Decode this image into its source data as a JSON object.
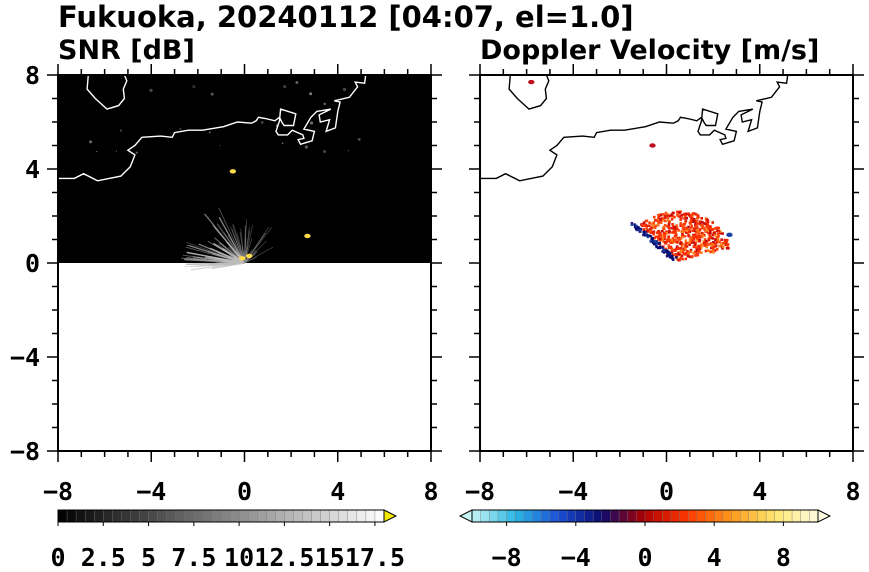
{
  "title": "Fukuoka, 20240112 [04:07, el=1.0]",
  "chart_data": [
    {
      "type": "heatmap",
      "panel": "SNR",
      "title": "SNR [dB]",
      "xlim": [
        -8,
        8
      ],
      "ylim": [
        -8,
        8
      ],
      "x_ticks": [
        "−8",
        "−4",
        "0",
        "4",
        "8"
      ],
      "y_ticks": [
        "8",
        "4",
        "0",
        "−4",
        "−8"
      ],
      "data_extent_y": [
        0,
        8
      ],
      "background_color": "#000000",
      "colorbar": {
        "min": 0,
        "max": 18,
        "step": 0.5,
        "extend": "max",
        "tick_labels": [
          "0",
          "2.5",
          "5",
          "7.5",
          "10",
          "12.5",
          "15",
          "17.5"
        ],
        "colors": [
          "#000000",
          "#ffffff"
        ],
        "extend_color": "#f5e800"
      },
      "features": {
        "sea_clutter_origin": [
          0,
          0
        ],
        "echo_spots": [
          {
            "x": -0.5,
            "y": 3.9,
            "color": "#ffd84a"
          },
          {
            "x": 2.7,
            "y": 1.15,
            "color": "#ffd84a"
          },
          {
            "x": -0.1,
            "y": 0.2,
            "color": "#ffd84a"
          },
          {
            "x": 0.2,
            "y": 0.3,
            "color": "#ffd84a"
          }
        ]
      }
    },
    {
      "type": "heatmap",
      "panel": "Doppler",
      "title": "Doppler Velocity [m/s]",
      "xlim": [
        -8,
        8
      ],
      "ylim": [
        -8,
        8
      ],
      "x_ticks": [
        "−8",
        "−4",
        "0",
        "4",
        "8"
      ],
      "y_ticks": [],
      "data_extent_y": [
        0,
        8
      ],
      "background_color": "#ffffff",
      "colorbar": {
        "min": -10,
        "max": 10,
        "step": 0.5,
        "extend": "both",
        "tick_labels": [
          "−8",
          "−4",
          "0",
          "4",
          "8"
        ],
        "colors": [
          "#c8f4f4",
          "#2ab8e6",
          "#1a4fd6",
          "#0a0a6e",
          "#b00000",
          "#ff3a00",
          "#ff9a1a",
          "#ffe770",
          "#fffbe0"
        ]
      },
      "features": {
        "echo_region_center": [
          0.5,
          1.2
        ],
        "echo_spots": [
          {
            "x": -5.8,
            "y": 7.7,
            "color": "#c01020"
          },
          {
            "x": 2.7,
            "y": 1.2,
            "color": "#1a3fa0"
          },
          {
            "x": -0.6,
            "y": 5.0,
            "color": "#c01020"
          }
        ]
      }
    }
  ],
  "coastline_km": [
    [
      -8,
      3.6
    ],
    [
      -7.3,
      3.6
    ],
    [
      -6.9,
      3.8
    ],
    [
      -6.3,
      3.5
    ],
    [
      -5.3,
      3.7
    ],
    [
      -4.9,
      4.1
    ],
    [
      -4.7,
      4.6
    ],
    [
      -5.0,
      4.8
    ],
    [
      -4.7,
      5.0
    ],
    [
      -4.4,
      5.35
    ],
    [
      -3.6,
      5.4
    ],
    [
      -3.1,
      5.35
    ],
    [
      -3.0,
      5.55
    ],
    [
      -2.4,
      5.65
    ],
    [
      -1.8,
      5.65
    ],
    [
      -0.9,
      5.8
    ],
    [
      -0.3,
      6.0
    ],
    [
      0.3,
      5.95
    ],
    [
      0.5,
      6.05
    ],
    [
      0.6,
      6.2
    ],
    [
      0.9,
      6.15
    ],
    [
      1.3,
      6.05
    ],
    [
      1.5,
      6.2
    ],
    [
      1.6,
      6.0
    ],
    [
      1.7,
      5.85
    ],
    [
      2.1,
      5.85
    ],
    [
      2.2,
      6.35
    ],
    [
      1.55,
      6.55
    ],
    [
      1.5,
      6.05
    ],
    [
      1.35,
      5.6
    ],
    [
      1.45,
      5.45
    ],
    [
      1.85,
      5.45
    ],
    [
      2.05,
      5.65
    ],
    [
      2.5,
      5.45
    ],
    [
      2.55,
      5.3
    ],
    [
      2.3,
      5.25
    ],
    [
      2.4,
      5.05
    ],
    [
      2.9,
      5.2
    ],
    [
      3.0,
      5.6
    ],
    [
      2.55,
      5.7
    ],
    [
      2.85,
      6.2
    ],
    [
      3.1,
      6.45
    ],
    [
      3.7,
      6.55
    ],
    [
      3.2,
      6.3
    ],
    [
      3.25,
      6.0
    ],
    [
      3.65,
      6.1
    ],
    [
      3.5,
      5.6
    ],
    [
      3.9,
      5.75
    ],
    [
      4.0,
      6.45
    ],
    [
      4.1,
      6.85
    ],
    [
      3.85,
      6.9
    ],
    [
      4.5,
      7.05
    ],
    [
      4.85,
      7.5
    ],
    [
      4.75,
      7.7
    ],
    [
      5.15,
      7.65
    ],
    [
      5.2,
      8.0
    ]
  ],
  "island_km": [
    [
      -6.7,
      8.0
    ],
    [
      -6.75,
      7.4
    ],
    [
      -6.4,
      7.0
    ],
    [
      -5.9,
      6.55
    ],
    [
      -5.4,
      6.7
    ],
    [
      -5.15,
      7.0
    ],
    [
      -5.2,
      7.4
    ],
    [
      -5.05,
      7.75
    ],
    [
      -5.15,
      8.0
    ]
  ]
}
